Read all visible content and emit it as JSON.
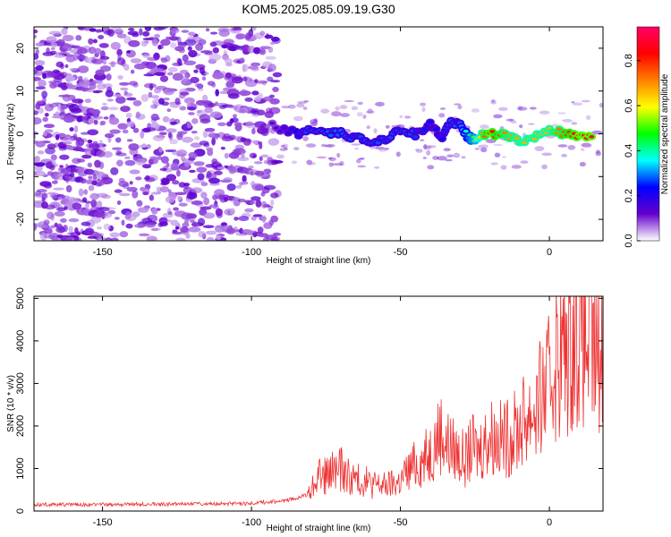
{
  "title": "KOM5.2025.085.09.19.G30",
  "chart_data": [
    {
      "type": "heatmap",
      "title": "KOM5.2025.085.09.19.G30",
      "xlabel": "Height of straight line (km)",
      "ylabel": "Frequency (Hz)",
      "xlim": [
        -173,
        18
      ],
      "ylim": [
        -25,
        25
      ],
      "x_ticks": [
        -150,
        -100,
        -50,
        0
      ],
      "y_ticks": [
        -20,
        -10,
        0,
        10,
        20
      ],
      "x_tick_labels": [
        "-150",
        "-100",
        "-50",
        "0"
      ],
      "y_tick_labels": [
        "-20",
        "-10",
        "0",
        "10",
        "20"
      ],
      "colorbar": {
        "label": "Normalized spectral amplitude",
        "range": [
          0,
          0.95
        ],
        "ticks": [
          0.0,
          0.2,
          0.4,
          0.6,
          0.8
        ],
        "tick_labels": [
          "0.0",
          "0.2",
          "0.4",
          "0.6",
          "0.8"
        ],
        "colormap": [
          "#ffffff",
          "#6600cc",
          "#0000ff",
          "#00ffff",
          "#00ff00",
          "#ffff00",
          "#ff8000",
          "#ff0000",
          "#ff0066"
        ]
      },
      "trace": {
        "x": [
          -93,
          -85,
          -80,
          -75,
          -70,
          -65,
          -60,
          -55,
          -50,
          -45,
          -40,
          -36,
          -33,
          -30,
          -27,
          -25,
          -20,
          -15,
          -10,
          -5,
          0,
          5,
          10,
          15
        ],
        "y": [
          2,
          0,
          1,
          0,
          0,
          -1,
          -2,
          -1,
          1,
          0,
          2,
          -1,
          3,
          2,
          -1,
          -1,
          0,
          0,
          -2,
          -1,
          1,
          0,
          -1,
          -1
        ],
        "amplitude": [
          0.15,
          0.25,
          0.3,
          0.3,
          0.3,
          0.28,
          0.3,
          0.28,
          0.3,
          0.28,
          0.25,
          0.25,
          0.3,
          0.3,
          0.45,
          0.55,
          0.9,
          0.75,
          0.7,
          0.7,
          0.7,
          0.8,
          0.9,
          0.9
        ]
      }
    },
    {
      "type": "line",
      "xlabel": "Height of straight line (km)",
      "ylabel": "SNR (10 * v/v)",
      "xlim": [
        -173,
        18
      ],
      "ylim": [
        0,
        5050
      ],
      "x_ticks": [
        -150,
        -100,
        -50,
        0
      ],
      "y_ticks": [
        0,
        1000,
        2000,
        3000,
        4000,
        5000
      ],
      "x_tick_labels": [
        "-150",
        "-100",
        "-50",
        "0"
      ],
      "y_tick_labels": [
        "0",
        "1000",
        "2000",
        "3000",
        "4000",
        "5000"
      ],
      "color": "#ee3333",
      "series": [
        {
          "x": [
            -173,
            -160,
            -150,
            -140,
            -130,
            -120,
            -110,
            -100,
            -95,
            -90,
            -85,
            -80,
            -78,
            -75,
            -72,
            -70,
            -68,
            -65,
            -62,
            -60,
            -58,
            -55,
            -52,
            -50,
            -48,
            -45,
            -42,
            -40,
            -38,
            -36,
            -35,
            -33,
            -30,
            -28,
            -26,
            -24,
            -22,
            -20,
            -18,
            -15,
            -12,
            -10,
            -8,
            -5,
            -3,
            0,
            2,
            4,
            6,
            8,
            10,
            12,
            14,
            16,
            18
          ],
          "y": [
            150,
            150,
            155,
            160,
            160,
            165,
            170,
            180,
            210,
            230,
            300,
            450,
            900,
            800,
            950,
            1000,
            850,
            750,
            700,
            650,
            620,
            600,
            650,
            700,
            900,
            1100,
            1200,
            1400,
            1700,
            1900,
            1600,
            1500,
            1300,
            1200,
            1500,
            1400,
            1600,
            1800,
            1700,
            1700,
            1800,
            2000,
            2200,
            2400,
            2600,
            3000,
            3600,
            3700,
            3800,
            4200,
            4300,
            4000,
            3800,
            3600,
            3700
          ]
        }
      ]
    }
  ]
}
